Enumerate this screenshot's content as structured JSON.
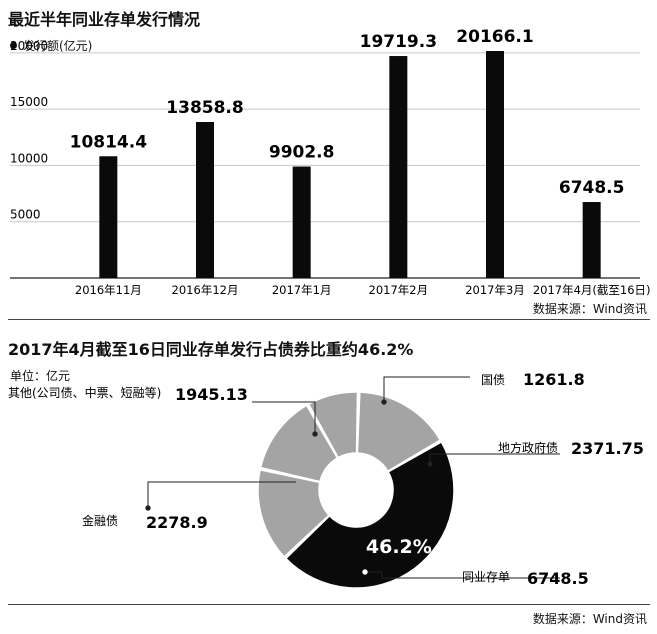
{
  "chart_data": [
    {
      "type": "bar",
      "title": "最近半年同业存单发行情况",
      "legend": "发行额(亿元)",
      "categories": [
        "2016年11月",
        "2016年12月",
        "2017年1月",
        "2017年2月",
        "2017年3月",
        "2017年4月(截至16日)"
      ],
      "series": [
        {
          "name": "发行额(亿元)",
          "values": [
            10814.4,
            13858.8,
            9902.8,
            19719.3,
            20166.1,
            6748.5
          ]
        }
      ],
      "value_labels": [
        "10814.4",
        "13858.8",
        "9902.8",
        "19719.3",
        "20166.1",
        "6748.5"
      ],
      "yticks": [
        "20000",
        "15000",
        "10000",
        "5000"
      ],
      "ylim": [
        0,
        20166.1
      ],
      "grid": true,
      "source": "数据来源：Wind资讯",
      "colors": {
        "bar": "#0a0a0a",
        "grid": "#c8c8c8"
      }
    },
    {
      "type": "pie",
      "title": "2017年4月截至16日同业存单发行占债券比重约46.2%",
      "unit": "单位：亿元",
      "slices": [
        {
          "name": "同业存单",
          "value": 6748.5,
          "label": "6748.5",
          "color": "#0a0a0a"
        },
        {
          "name": "金融债",
          "value": 2278.9,
          "label": "2278.9",
          "color": "#a4a4a4"
        },
        {
          "name": "其他(公司债、中票、短融等)",
          "value": 1945.13,
          "label": "1945.13",
          "color": "#a4a4a4"
        },
        {
          "name": "国债",
          "value": 1261.8,
          "label": "1261.8",
          "color": "#a4a4a4"
        },
        {
          "name": "地方政府债",
          "value": 2371.75,
          "label": "2371.75",
          "color": "#a4a4a4"
        }
      ],
      "highlight_label": "46.2%",
      "source": "数据来源：Wind资讯"
    }
  ]
}
